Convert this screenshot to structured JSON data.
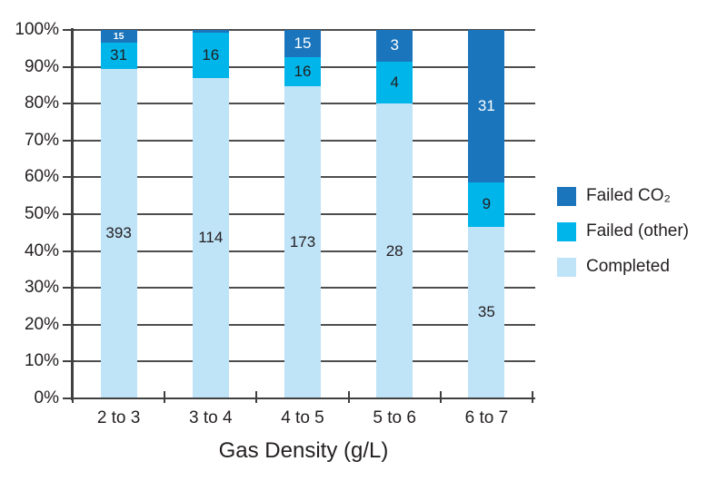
{
  "colors": {
    "background": "#ffffff",
    "grid": "#4d4d4d",
    "axis": "#404040",
    "text": "#231f20",
    "failed_co2": "#1b75bc",
    "failed_other": "#00b5ea",
    "completed": "#bfe3f7"
  },
  "chart_data": {
    "type": "bar",
    "subtype": "stacked-100-percent",
    "title": "",
    "xlabel": "Gas Density (g/L)",
    "ylabel": "",
    "categories": [
      "2 to 3",
      "3 to 4",
      "4 to 5",
      "5 to 6",
      "6 to 7"
    ],
    "series": [
      {
        "name": "Completed",
        "color": "#bfe3f7",
        "text_color": "#231f20",
        "values": [
          393,
          114,
          173,
          28,
          35
        ],
        "labels": [
          "393",
          "114",
          "173",
          "28",
          "35"
        ]
      },
      {
        "name": "Failed (other)",
        "color": "#00b5ea",
        "text_color": "#231f20",
        "values": [
          31,
          16,
          16,
          4,
          9
        ],
        "labels": [
          "31",
          "16",
          "16",
          "4",
          "9"
        ]
      },
      {
        "name": "Failed CO₂",
        "color": "#1b75bc",
        "text_color": "#ffffff",
        "values": [
          15,
          1,
          15,
          3,
          31
        ],
        "labels": [
          "15",
          "",
          "15",
          "3",
          "31"
        ]
      }
    ],
    "y_ticks": [
      "0%",
      "10%",
      "20%",
      "30%",
      "40%",
      "50%",
      "60%",
      "70%",
      "80%",
      "90%",
      "100%"
    ],
    "ylim": [
      0,
      100
    ],
    "grid": true,
    "legend_position": "right",
    "legend_order": [
      2,
      1,
      0
    ]
  }
}
